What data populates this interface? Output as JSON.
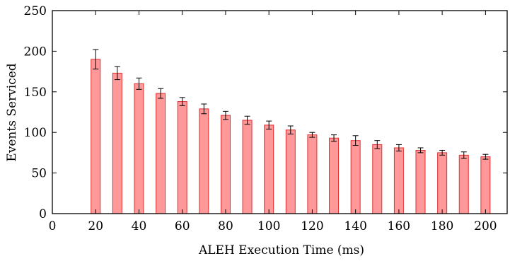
{
  "chart_data": {
    "type": "bar",
    "title": "",
    "xlabel": "ALEH Execution Time (ms)",
    "ylabel": "Events Serviced",
    "xlim": [
      0,
      210
    ],
    "ylim": [
      0,
      250
    ],
    "xticks": [
      0,
      20,
      40,
      60,
      80,
      100,
      120,
      140,
      160,
      180,
      200
    ],
    "yticks": [
      0,
      50,
      100,
      150,
      200,
      250
    ],
    "grid": false,
    "legend": "none",
    "bar_color": "#ff9999",
    "bar_edge_color": "#e03030",
    "x": [
      20,
      30,
      40,
      50,
      60,
      70,
      80,
      90,
      100,
      110,
      120,
      130,
      140,
      150,
      160,
      170,
      180,
      190,
      200
    ],
    "values": [
      190,
      173,
      160,
      148,
      138,
      129,
      121,
      115,
      109,
      103,
      97,
      93,
      90,
      85,
      81,
      78,
      75,
      72,
      70
    ],
    "error": [
      12,
      8,
      7,
      6,
      5,
      6,
      5,
      5,
      5,
      5,
      3,
      4,
      6,
      5,
      4,
      3,
      3,
      4,
      3
    ]
  }
}
